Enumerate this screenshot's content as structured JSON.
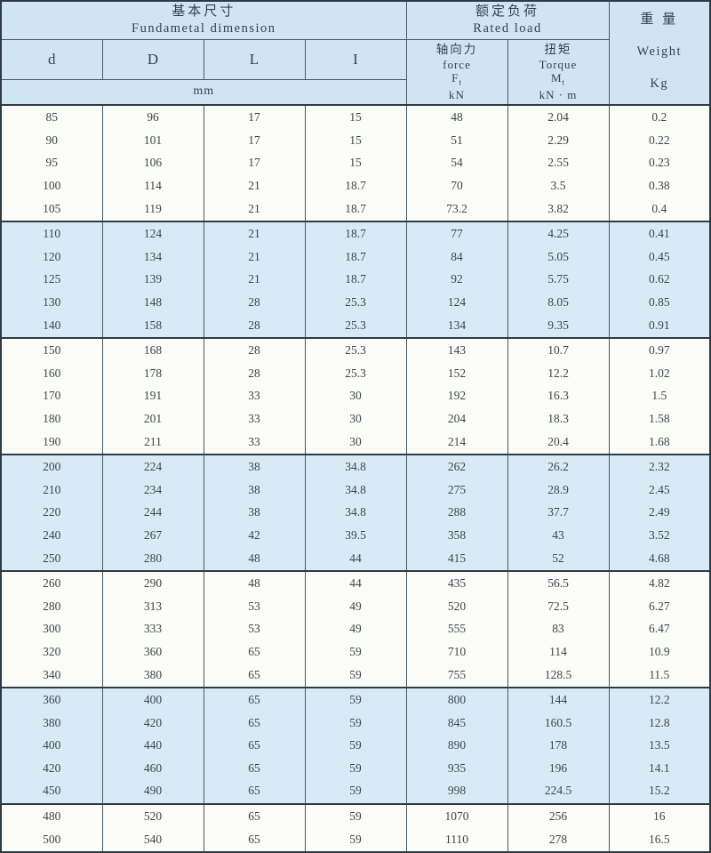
{
  "table": {
    "header": {
      "dimensions_group": {
        "zh": "基本尺寸",
        "en": "Fundametal  dimension"
      },
      "rated_load_group": {
        "zh": "额定负荷",
        "en": "Rated load"
      },
      "weight_col": {
        "zh": "重 量",
        "en": "Weight",
        "unit": "Kg"
      },
      "dim_cols": [
        "d",
        "D",
        "L",
        "I"
      ],
      "dim_unit": "mm",
      "force_col": {
        "zh": "轴向力",
        "en": "force",
        "symbol": "F",
        "symbol_sub": "t",
        "unit": "kN"
      },
      "torque_col": {
        "zh": "扭矩",
        "en": "Torque",
        "symbol": "M",
        "symbol_sub": "t",
        "unit": "kN · m"
      }
    },
    "rows": [
      [
        "85",
        "96",
        "17",
        "15",
        "48",
        "2.04",
        "0.2"
      ],
      [
        "90",
        "101",
        "17",
        "15",
        "51",
        "2.29",
        "0.22"
      ],
      [
        "95",
        "106",
        "17",
        "15",
        "54",
        "2.55",
        "0.23"
      ],
      [
        "100",
        "114",
        "21",
        "18.7",
        "70",
        "3.5",
        "0.38"
      ],
      [
        "105",
        "119",
        "21",
        "18.7",
        "73.2",
        "3.82",
        "0.4"
      ],
      [
        "110",
        "124",
        "21",
        "18.7",
        "77",
        "4.25",
        "0.41"
      ],
      [
        "120",
        "134",
        "21",
        "18.7",
        "84",
        "5.05",
        "0.45"
      ],
      [
        "125",
        "139",
        "21",
        "18.7",
        "92",
        "5.75",
        "0.62"
      ],
      [
        "130",
        "148",
        "28",
        "25.3",
        "124",
        "8.05",
        "0.85"
      ],
      [
        "140",
        "158",
        "28",
        "25.3",
        "134",
        "9.35",
        "0.91"
      ],
      [
        "150",
        "168",
        "28",
        "25.3",
        "143",
        "10.7",
        "0.97"
      ],
      [
        "160",
        "178",
        "28",
        "25.3",
        "152",
        "12.2",
        "1.02"
      ],
      [
        "170",
        "191",
        "33",
        "30",
        "192",
        "16.3",
        "1.5"
      ],
      [
        "180",
        "201",
        "33",
        "30",
        "204",
        "18.3",
        "1.58"
      ],
      [
        "190",
        "211",
        "33",
        "30",
        "214",
        "20.4",
        "1.68"
      ],
      [
        "200",
        "224",
        "38",
        "34.8",
        "262",
        "26.2",
        "2.32"
      ],
      [
        "210",
        "234",
        "38",
        "34.8",
        "275",
        "28.9",
        "2.45"
      ],
      [
        "220",
        "244",
        "38",
        "34.8",
        "288",
        "37.7",
        "2.49"
      ],
      [
        "240",
        "267",
        "42",
        "39.5",
        "358",
        "43",
        "3.52"
      ],
      [
        "250",
        "280",
        "48",
        "44",
        "415",
        "52",
        "4.68"
      ],
      [
        "260",
        "290",
        "48",
        "44",
        "435",
        "56.5",
        "4.82"
      ],
      [
        "280",
        "313",
        "53",
        "49",
        "520",
        "72.5",
        "6.27"
      ],
      [
        "300",
        "333",
        "53",
        "49",
        "555",
        "83",
        "6.47"
      ],
      [
        "320",
        "360",
        "65",
        "59",
        "710",
        "114",
        "10.9"
      ],
      [
        "340",
        "380",
        "65",
        "59",
        "755",
        "128.5",
        "11.5"
      ],
      [
        "360",
        "400",
        "65",
        "59",
        "800",
        "144",
        "12.2"
      ],
      [
        "380",
        "420",
        "65",
        "59",
        "845",
        "160.5",
        "12.8"
      ],
      [
        "400",
        "440",
        "65",
        "59",
        "890",
        "178",
        "13.5"
      ],
      [
        "420",
        "460",
        "65",
        "59",
        "935",
        "196",
        "14.1"
      ],
      [
        "450",
        "490",
        "65",
        "59",
        "998",
        "224.5",
        "15.2"
      ],
      [
        "480",
        "520",
        "65",
        "59",
        "1070",
        "256",
        "16"
      ],
      [
        "500",
        "540",
        "65",
        "59",
        "1110",
        "278",
        "16.5"
      ]
    ],
    "band_group_size": 5,
    "band_color": "#d8eaf6",
    "header_color": "#cfe5f1"
  }
}
